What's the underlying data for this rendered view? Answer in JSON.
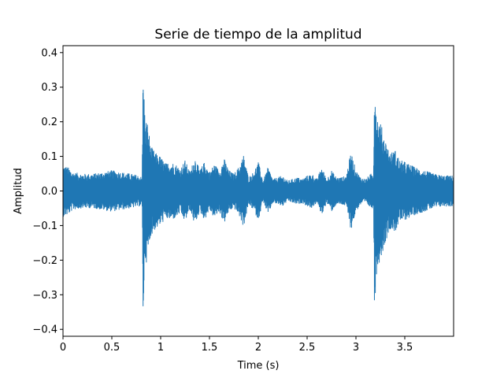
{
  "chart_data": {
    "type": "line",
    "title": "Serie de tiempo de la amplitud",
    "xlabel": "Time (s)",
    "ylabel": "Amplitud",
    "xlim": [
      0,
      4.0
    ],
    "ylim": [
      -0.42,
      0.42
    ],
    "x_ticks": [
      0,
      0.5,
      1,
      1.5,
      2,
      2.5,
      3,
      3.5
    ],
    "x_tick_labels": [
      "0",
      "0.5",
      "1",
      "1.5",
      "2",
      "2.5",
      "3",
      "3.5"
    ],
    "y_ticks": [
      -0.4,
      -0.3,
      -0.2,
      -0.1,
      0.0,
      0.1,
      0.2,
      0.3,
      0.4
    ],
    "y_tick_labels": [
      "−0.4",
      "−0.3",
      "−0.2",
      "−0.1",
      "0.0",
      "0.1",
      "0.2",
      "0.3",
      "0.4"
    ],
    "grid": false,
    "legend": "none",
    "series": [
      {
        "color": "#1f77b4",
        "envelope": {
          "t": [
            0.0,
            0.05,
            0.1,
            0.2,
            0.3,
            0.4,
            0.5,
            0.6,
            0.7,
            0.78,
            0.81,
            0.82,
            0.83,
            0.84,
            0.86,
            0.88,
            0.9,
            0.95,
            1.0,
            1.05,
            1.1,
            1.15,
            1.2,
            1.25,
            1.3,
            1.35,
            1.4,
            1.45,
            1.5,
            1.55,
            1.6,
            1.65,
            1.7,
            1.75,
            1.8,
            1.85,
            1.9,
            1.95,
            2.0,
            2.05,
            2.1,
            2.15,
            2.2,
            2.25,
            2.3,
            2.35,
            2.4,
            2.45,
            2.5,
            2.55,
            2.6,
            2.65,
            2.7,
            2.75,
            2.8,
            2.85,
            2.9,
            2.95,
            3.0,
            3.05,
            3.1,
            3.15,
            3.18,
            3.19,
            3.2,
            3.22,
            3.25,
            3.3,
            3.35,
            3.4,
            3.45,
            3.5,
            3.6,
            3.7,
            3.8,
            3.9,
            4.0
          ],
          "amp": [
            0.075,
            0.07,
            0.055,
            0.05,
            0.05,
            0.055,
            0.06,
            0.055,
            0.05,
            0.045,
            0.04,
            0.36,
            0.3,
            0.2,
            0.21,
            0.17,
            0.13,
            0.11,
            0.1,
            0.08,
            0.085,
            0.08,
            0.065,
            0.09,
            0.055,
            0.1,
            0.06,
            0.085,
            0.055,
            0.08,
            0.06,
            0.095,
            0.06,
            0.05,
            0.07,
            0.105,
            0.04,
            0.055,
            0.085,
            0.03,
            0.07,
            0.035,
            0.04,
            0.045,
            0.03,
            0.035,
            0.04,
            0.035,
            0.045,
            0.05,
            0.035,
            0.07,
            0.035,
            0.06,
            0.04,
            0.04,
            0.045,
            0.115,
            0.06,
            0.04,
            0.035,
            0.05,
            0.05,
            0.38,
            0.28,
            0.22,
            0.2,
            0.15,
            0.11,
            0.12,
            0.09,
            0.085,
            0.07,
            0.06,
            0.05,
            0.045,
            0.045
          ]
        }
      }
    ]
  }
}
